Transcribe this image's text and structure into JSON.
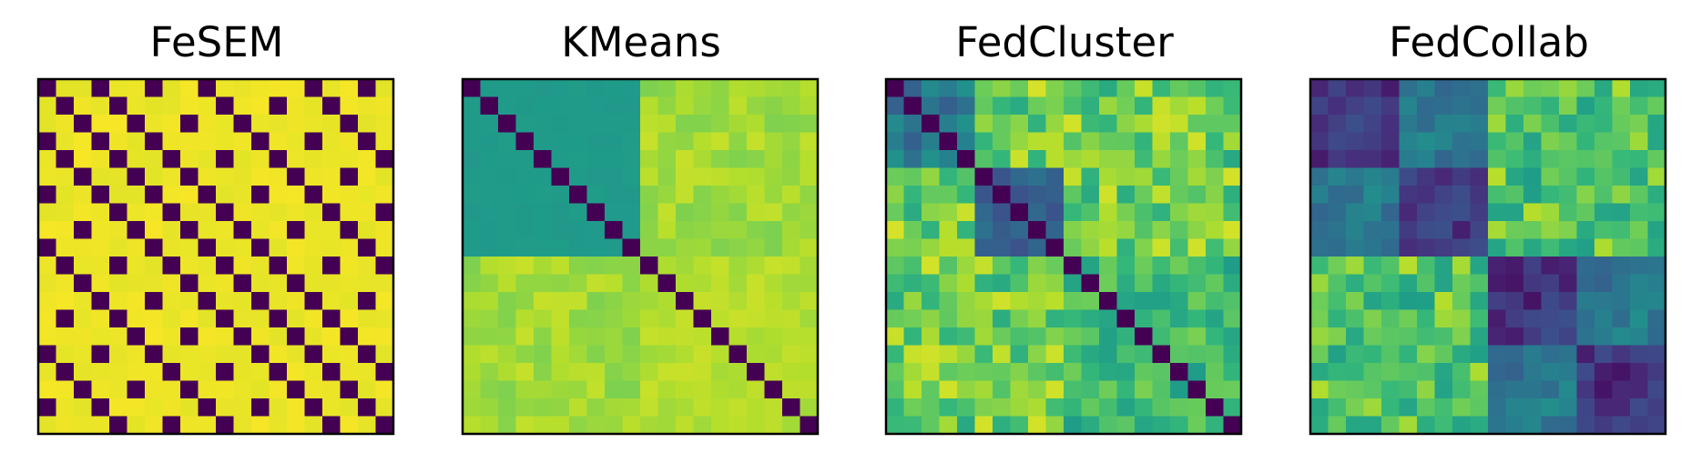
{
  "chart_data": [
    {
      "type": "heatmap",
      "title": "FeSEM",
      "n": 20,
      "colormap": "viridis",
      "ticks": "none",
      "layout": "row-of-matrices",
      "pattern": "binary",
      "diagonal": 0.0,
      "value_range": [
        0,
        1
      ]
    },
    {
      "type": "heatmap",
      "title": "KMeans",
      "n": 20,
      "colormap": "viridis",
      "ticks": "none",
      "layout": "row-of-matrices",
      "pattern": "two-block",
      "diagonal": 0.0,
      "value_range": [
        0,
        1
      ]
    },
    {
      "type": "heatmap",
      "title": "FedCluster",
      "n": 20,
      "colormap": "viridis",
      "ticks": "none",
      "layout": "row-of-matrices",
      "pattern": "block-noisy",
      "diagonal": 0.0,
      "value_range": [
        0,
        1
      ]
    },
    {
      "type": "heatmap",
      "title": "FedCollab",
      "n": 20,
      "colormap": "viridis",
      "ticks": "none",
      "layout": "row-of-matrices",
      "pattern": "block-noisy-four",
      "diagonal": null,
      "value_range": [
        0,
        1
      ]
    }
  ]
}
